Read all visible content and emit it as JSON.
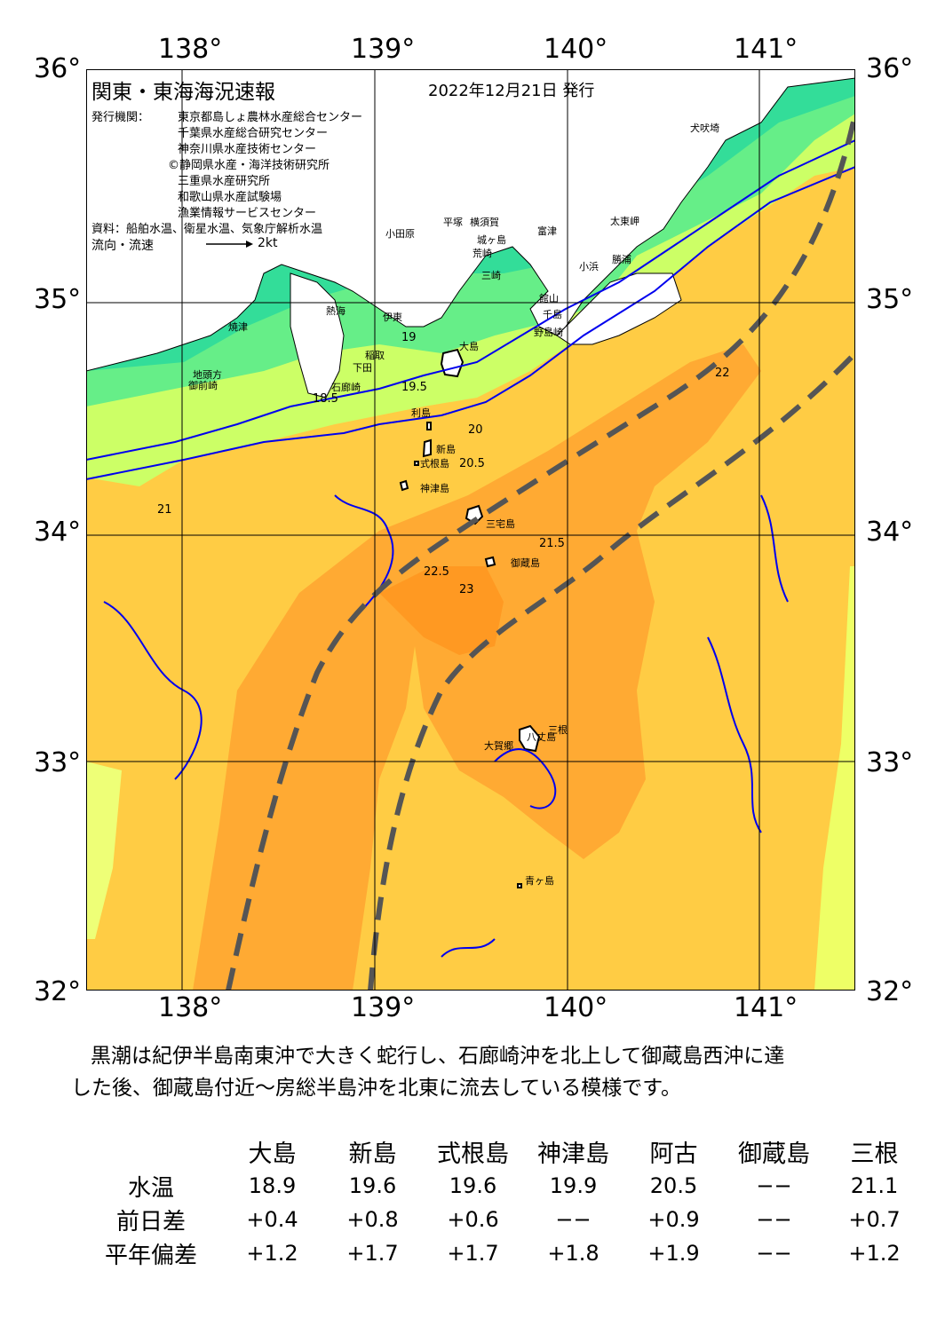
{
  "map": {
    "title": "関東・東海海況速報",
    "date": "2022年12月21日 発行",
    "publisher_label": "発行機関：",
    "publishers": [
      "東京都島しょ農林水産総合センター",
      "千葉県水産総合研究センター",
      "神奈川県水産技術センター",
      "©静岡県水産・海洋技術研究所",
      "三重県水産研究所",
      "和歌山県水産試験場",
      "漁業情報サービスセンター"
    ],
    "source": "資料：船舶水温、衛星水温、気象庁解析水温",
    "flow_legend": "流向・流速",
    "flow_scale": "2kt",
    "lon_labels": [
      "138°",
      "139°",
      "140°",
      "141°"
    ],
    "lat_labels": [
      "36°",
      "35°",
      "34°",
      "33°",
      "32°"
    ],
    "extent": {
      "lon": [
        137.5,
        141.5
      ],
      "lat": [
        32,
        36
      ]
    },
    "place_names": [
      "犬吠埼",
      "太東岬",
      "小浜",
      "勝浦",
      "富津",
      "館山",
      "千島",
      "野島崎",
      "平塚",
      "横須賀",
      "城ヶ島",
      "荒崎",
      "三崎",
      "小田原",
      "熱海",
      "伊東",
      "大島",
      "稲取",
      "下田",
      "石廊崎",
      "利島",
      "新島",
      "式根島",
      "神津島",
      "御蔵島",
      "三宅島",
      "八丈島",
      "三根",
      "大賀郷",
      "青ヶ島",
      "御前崎",
      "焼津",
      "地頭方"
    ],
    "contour_labels": [
      "18.5",
      "19",
      "19.5",
      "20",
      "20.5",
      "21",
      "21.5",
      "22",
      "22.5",
      "23"
    ],
    "colors": {
      "cold": "#33dd99",
      "cool": "#66ee88",
      "mild": "#ccff66",
      "warm": "#ffcc44",
      "warmer": "#ffaa33",
      "hot": "#ff9922",
      "contour": "#0000ee",
      "kuroshio": "#555555",
      "land": "#ffffff"
    }
  },
  "summary": {
    "line1": "黒潮は紀伊半島南東沖で大きく蛇行し、石廊崎沖を北上して御蔵島西沖に達",
    "line2": "した後、御蔵島付近～房総半島沖を北東に流去している模様です。"
  },
  "table": {
    "stations": [
      "大島",
      "新島",
      "式根島",
      "神津島",
      "阿古",
      "御蔵島",
      "三根"
    ],
    "rows": [
      {
        "label": "水温",
        "values": [
          "18.9",
          "19.6",
          "19.6",
          "19.9",
          "20.5",
          "−−",
          "21.1"
        ]
      },
      {
        "label": "前日差",
        "values": [
          "+0.4",
          "+0.8",
          "+0.6",
          "−−",
          "+0.9",
          "−−",
          "+0.7"
        ]
      },
      {
        "label": "平年偏差",
        "values": [
          "+1.2",
          "+1.7",
          "+1.7",
          "+1.8",
          "+1.9",
          "−−",
          "+1.2"
        ]
      }
    ]
  }
}
